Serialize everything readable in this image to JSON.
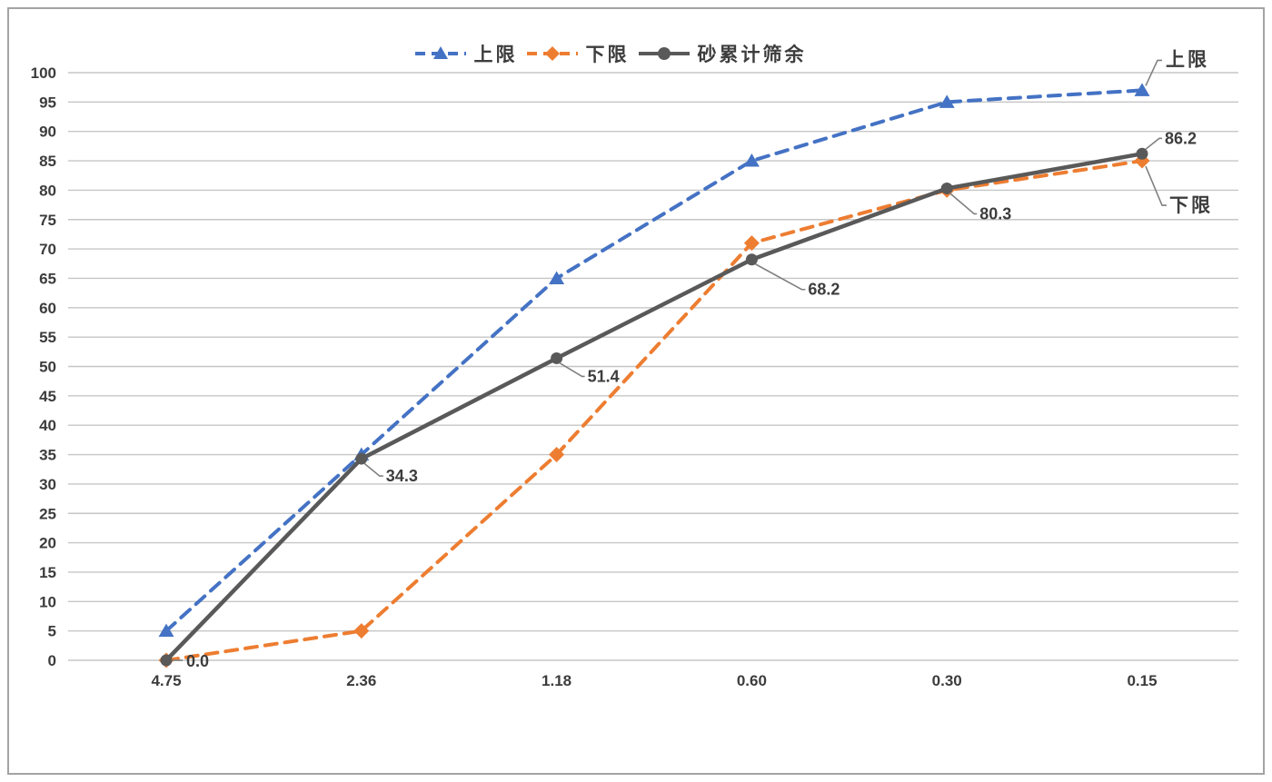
{
  "chart_data": {
    "type": "line",
    "title": "",
    "xlabel": "",
    "ylabel": "",
    "x_categories": [
      "4.75",
      "2.36",
      "1.18",
      "0.60",
      "0.30",
      "0.15"
    ],
    "ylim": [
      0,
      100
    ],
    "ytick_step": 5,
    "grid": "horizontal-only",
    "gridline_color": "#c6c6c6",
    "axis_text_color": "#3c3c3c",
    "legend_position": "top-center",
    "series": [
      {
        "name": "上限",
        "color": "#4472C4",
        "line_style": "dashed",
        "marker": "triangle",
        "values": [
          5,
          35,
          65,
          85,
          95,
          97
        ]
      },
      {
        "name": "下限",
        "color": "#ED7D31",
        "line_style": "dashed",
        "marker": "diamond",
        "values": [
          0,
          5,
          35,
          71,
          80,
          85
        ]
      },
      {
        "name": "砂累计筛余",
        "color": "#595959",
        "line_style": "solid",
        "marker": "circle",
        "values": [
          0.0,
          34.3,
          51.4,
          68.2,
          80.3,
          86.2
        ],
        "point_labels": [
          "0.0",
          "34.3",
          "51.4",
          "68.2",
          "80.3",
          "86.2"
        ]
      }
    ],
    "annotations": [
      {
        "text": "上限",
        "series_index": 0,
        "point_index": 5
      },
      {
        "text": "下限",
        "series_index": 1,
        "point_index": 5
      }
    ],
    "label_text_color": "#3d3d3d",
    "leader_line_color": "#808080"
  }
}
